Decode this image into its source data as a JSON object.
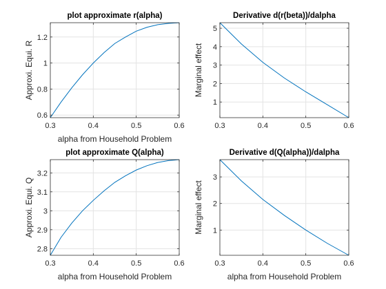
{
  "chart_data": [
    {
      "type": "line",
      "title": "plot approximate r(alpha)",
      "xlabel": "alpha from Household Problem",
      "ylabel": "Approxi. Equi. R",
      "xlim": [
        0.3,
        0.6
      ],
      "ylim": [
        0.58,
        1.31
      ],
      "xticks": [
        0.3,
        0.4,
        0.5,
        0.6
      ],
      "xtick_labels": [
        "0.3",
        "0.4",
        "0.5",
        "0.6"
      ],
      "yticks": [
        0.6,
        0.8,
        1.0,
        1.2
      ],
      "ytick_labels": [
        "0.6",
        "0.8",
        "1",
        "1.2"
      ],
      "grid": true,
      "series": [
        {
          "color": "#0072BD",
          "x": [
            0.3,
            0.325,
            0.35,
            0.375,
            0.4,
            0.425,
            0.45,
            0.475,
            0.5,
            0.525,
            0.55,
            0.575,
            0.6
          ],
          "y": [
            0.58,
            0.7,
            0.81,
            0.91,
            1.0,
            1.08,
            1.15,
            1.2,
            1.245,
            1.275,
            1.295,
            1.305,
            1.31
          ]
        }
      ]
    },
    {
      "type": "line",
      "title": "Derivative d(r(beta))/dalpha",
      "xlabel": "",
      "ylabel": "Marginal effect",
      "xlim": [
        0.3,
        0.6
      ],
      "ylim": [
        0.15,
        5.3
      ],
      "xticks": [
        0.3,
        0.4,
        0.5,
        0.6
      ],
      "xtick_labels": [
        "0.3",
        "0.4",
        "0.5",
        "0.6"
      ],
      "yticks": [
        1,
        2,
        3,
        4,
        5
      ],
      "ytick_labels": [
        "1",
        "2",
        "3",
        "4",
        "5"
      ],
      "grid": true,
      "series": [
        {
          "color": "#0072BD",
          "x": [
            0.3,
            0.35,
            0.4,
            0.45,
            0.5,
            0.55,
            0.6
          ],
          "y": [
            5.3,
            4.15,
            3.15,
            2.3,
            1.55,
            0.85,
            0.15
          ]
        }
      ]
    },
    {
      "type": "line",
      "title": "plot approximate Q(alpha)",
      "xlabel": "alpha from Household Problem",
      "ylabel": "Approxi. Equi. Q",
      "xlim": [
        0.3,
        0.6
      ],
      "ylim": [
        2.765,
        3.27
      ],
      "xticks": [
        0.3,
        0.4,
        0.5,
        0.6
      ],
      "xtick_labels": [
        "0.3",
        "0.4",
        "0.5",
        "0.6"
      ],
      "yticks": [
        2.8,
        2.9,
        3.0,
        3.1,
        3.2
      ],
      "ytick_labels": [
        "2.8",
        "2.9",
        "3",
        "3.1",
        "3.2"
      ],
      "grid": true,
      "series": [
        {
          "color": "#0072BD",
          "x": [
            0.3,
            0.325,
            0.35,
            0.375,
            0.4,
            0.425,
            0.45,
            0.475,
            0.5,
            0.525,
            0.55,
            0.575,
            0.6
          ],
          "y": [
            2.765,
            2.86,
            2.935,
            3.0,
            3.055,
            3.105,
            3.15,
            3.185,
            3.215,
            3.238,
            3.255,
            3.265,
            3.27
          ]
        }
      ]
    },
    {
      "type": "line",
      "title": "Derivative d(Q(alpha))/dalpha",
      "xlabel": "alpha from Household Problem",
      "ylabel": "Marginal effect",
      "xlim": [
        0.3,
        0.6
      ],
      "ylim": [
        0.05,
        3.65
      ],
      "xticks": [
        0.3,
        0.4,
        0.5,
        0.6
      ],
      "xtick_labels": [
        "0.3",
        "0.4",
        "0.5",
        "0.6"
      ],
      "yticks": [
        1,
        2,
        3
      ],
      "ytick_labels": [
        "1",
        "2",
        "3"
      ],
      "grid": true,
      "series": [
        {
          "color": "#0072BD",
          "x": [
            0.3,
            0.35,
            0.4,
            0.45,
            0.5,
            0.55,
            0.6
          ],
          "y": [
            3.65,
            2.85,
            2.15,
            1.55,
            1.0,
            0.5,
            0.05
          ]
        }
      ]
    }
  ]
}
